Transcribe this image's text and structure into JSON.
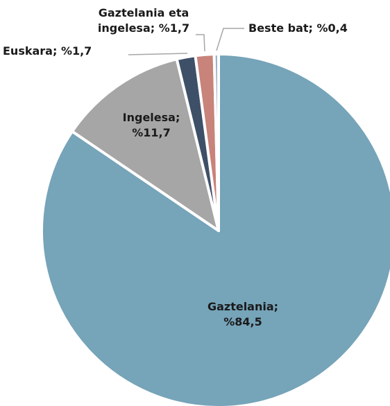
{
  "chart_data": {
    "type": "pie",
    "title": "",
    "categories": [
      "Gaztelania",
      "Ingelesa",
      "Euskara",
      "Gaztelania eta ingelesa",
      "Beste bat"
    ],
    "values": [
      84.5,
      11.7,
      1.7,
      1.7,
      0.4
    ],
    "colors": [
      "#76a4b9",
      "#a6a6a6",
      "#3e5068",
      "#c8837a",
      "#9fb4c2"
    ],
    "labels": [
      {
        "lines": [
          "Gaztelania;",
          "%84,5"
        ]
      },
      {
        "lines": [
          "Ingelesa;",
          "%11,7"
        ]
      },
      {
        "lines": [
          "Euskara; %1,7"
        ]
      },
      {
        "lines": [
          "Gaztelania eta",
          "ingelesa; %1,7"
        ]
      },
      {
        "lines": [
          "Beste bat; %0,4"
        ]
      }
    ],
    "start_angle_deg": 0,
    "direction": "clockwise",
    "legend": "none"
  }
}
